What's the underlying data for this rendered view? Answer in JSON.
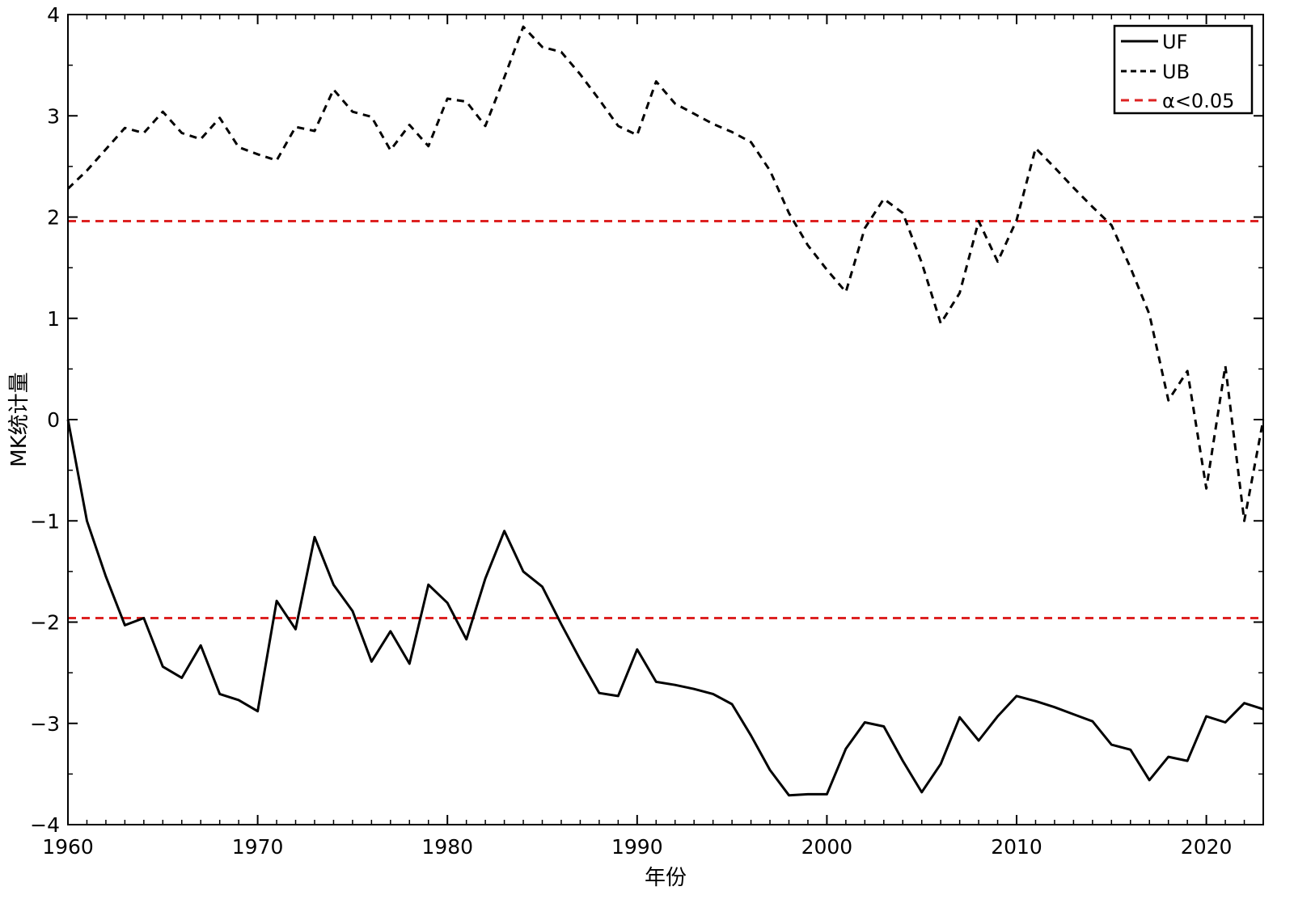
{
  "chart_data": {
    "type": "line",
    "xlabel": "年份",
    "ylabel": "MK统计量",
    "xlim": [
      1960,
      2023
    ],
    "ylim": [
      -4,
      4
    ],
    "x_ticks": [
      1960,
      1970,
      1980,
      1990,
      2000,
      2010,
      2020
    ],
    "y_ticks": [
      -4,
      -3,
      -2,
      -1,
      0,
      1,
      2,
      3,
      4
    ],
    "x_tick_labels": [
      "1960",
      "1970",
      "1980",
      "1990",
      "2000",
      "2010",
      "2020"
    ],
    "y_tick_labels": [
      "−4",
      "−3",
      "−2",
      "−1",
      "0",
      "1",
      "2",
      "3",
      "4"
    ],
    "x": [
      1960,
      1961,
      1962,
      1963,
      1964,
      1965,
      1966,
      1967,
      1968,
      1969,
      1970,
      1971,
      1972,
      1973,
      1974,
      1975,
      1976,
      1977,
      1978,
      1979,
      1980,
      1981,
      1982,
      1983,
      1984,
      1985,
      1986,
      1987,
      1988,
      1989,
      1990,
      1991,
      1992,
      1993,
      1994,
      1995,
      1996,
      1997,
      1998,
      1999,
      2000,
      2001,
      2002,
      2003,
      2004,
      2005,
      2006,
      2007,
      2008,
      2009,
      2010,
      2011,
      2012,
      2013,
      2014,
      2015,
      2016,
      2017,
      2018,
      2019,
      2020,
      2021,
      2022,
      2023
    ],
    "series": [
      {
        "name": "UF",
        "color": "#000000",
        "style": "solid",
        "values": [
          0,
          -1.0,
          -1.55,
          -2.03,
          -1.96,
          -2.44,
          -2.55,
          -2.23,
          -2.71,
          -2.77,
          -2.88,
          -1.79,
          -2.07,
          -1.16,
          -1.63,
          -1.89,
          -2.39,
          -2.09,
          -2.41,
          -1.63,
          -1.81,
          -2.17,
          -1.57,
          -1.1,
          -1.5,
          -1.65,
          -2.02,
          -2.37,
          -2.7,
          -2.73,
          -2.27,
          -2.59,
          -2.62,
          -2.66,
          -2.71,
          -2.81,
          -3.12,
          -3.46,
          -3.71,
          -3.7,
          -3.7,
          -3.25,
          -2.99,
          -3.03,
          -3.37,
          -3.68,
          -3.4,
          -2.94,
          -3.17,
          -2.93,
          -2.73,
          -2.78,
          -2.84,
          -2.91,
          -2.98,
          -3.21,
          -3.26,
          -3.56,
          -3.33,
          -3.37,
          -2.93,
          -2.99,
          -2.8,
          -2.86
        ]
      },
      {
        "name": "UB",
        "color": "#000000",
        "style": "dashed",
        "values": [
          2.28,
          2.46,
          2.67,
          2.88,
          2.83,
          3.04,
          2.83,
          2.77,
          2.98,
          2.69,
          2.62,
          2.56,
          2.89,
          2.85,
          3.26,
          3.04,
          2.99,
          2.66,
          2.91,
          2.7,
          3.17,
          3.14,
          2.9,
          3.38,
          3.88,
          3.68,
          3.63,
          3.41,
          3.16,
          2.9,
          2.81,
          3.34,
          3.12,
          3.02,
          2.92,
          2.84,
          2.74,
          2.46,
          2.04,
          1.72,
          1.48,
          1.26,
          1.89,
          2.18,
          2.04,
          1.55,
          0.95,
          1.25,
          1.96,
          1.56,
          1.97,
          2.68,
          2.49,
          2.29,
          2.1,
          1.92,
          1.5,
          1.04,
          0.19,
          0.48,
          -0.68,
          0.53,
          -1.0,
          0.0
        ]
      }
    ],
    "threshold": {
      "name": "α<0.05",
      "color": "#dd2222",
      "style": "dashed",
      "values": [
        1.96,
        -1.96
      ]
    },
    "legend": {
      "position": "top-right",
      "entries": [
        "UF",
        "UB",
        "α<0.05"
      ]
    },
    "grid": false
  }
}
